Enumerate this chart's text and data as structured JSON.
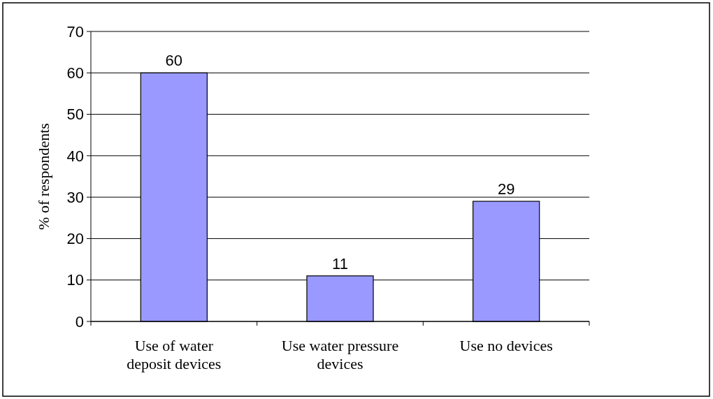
{
  "chart_data": {
    "type": "bar",
    "categories": [
      "Use of water deposit devices",
      "Use water pressure devices",
      "Use no devices"
    ],
    "values": [
      60,
      11,
      29
    ],
    "color": "#9999ff",
    "ylabel": "% of respondents",
    "ylim": [
      0,
      70
    ],
    "yticks": [
      0,
      10,
      20,
      30,
      40,
      50,
      60,
      70
    ],
    "grid": "y",
    "data_labels": true
  }
}
